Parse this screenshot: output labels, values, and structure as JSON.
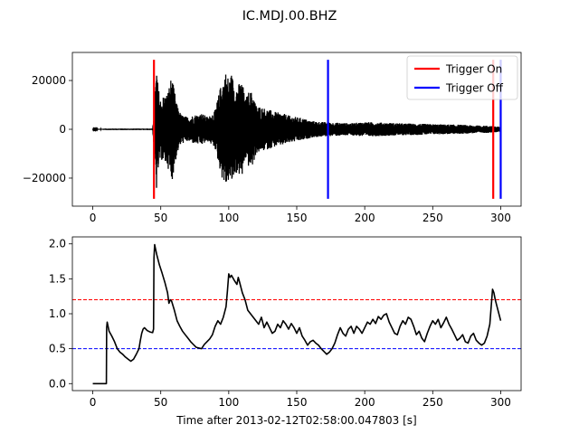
{
  "figure": {
    "title": "IC.MDJ.00.BHZ"
  },
  "chart_data": [
    {
      "type": "line",
      "title": "",
      "xlabel": "",
      "ylabel": "",
      "xlim": [
        -15,
        315
      ],
      "ylim": [
        -31500,
        31500
      ],
      "xticks": [
        0,
        50,
        100,
        150,
        200,
        250,
        300
      ],
      "yticks": [
        -20000,
        0,
        20000
      ],
      "legend": {
        "position": "top-right",
        "entries": [
          "Trigger On",
          "Trigger Off"
        ]
      },
      "series": [
        {
          "name": "",
          "color": "#000000",
          "kind": "waveform",
          "envelope": [
            [
              0,
              100
            ],
            [
              10,
              300
            ],
            [
              20,
              300
            ],
            [
              30,
              300
            ],
            [
              40,
              300
            ],
            [
              44,
              300
            ],
            [
              45,
              8000
            ],
            [
              46,
              18000
            ],
            [
              47,
              26000
            ],
            [
              48,
              18000
            ],
            [
              50,
              12000
            ],
            [
              52,
              14000
            ],
            [
              55,
              15000
            ],
            [
              57,
              20000
            ],
            [
              58,
              22000
            ],
            [
              60,
              16000
            ],
            [
              62,
              10000
            ],
            [
              65,
              6000
            ],
            [
              70,
              5000
            ],
            [
              75,
              6000
            ],
            [
              80,
              6500
            ],
            [
              85,
              5000
            ],
            [
              90,
              8000
            ],
            [
              95,
              20000
            ],
            [
              98,
              24000
            ],
            [
              100,
              21000
            ],
            [
              102,
              23000
            ],
            [
              105,
              18000
            ],
            [
              108,
              19000
            ],
            [
              110,
              20000
            ],
            [
              112,
              12000
            ],
            [
              115,
              16000
            ],
            [
              118,
              15000
            ],
            [
              120,
              10000
            ],
            [
              125,
              9000
            ],
            [
              130,
              8000
            ],
            [
              135,
              7000
            ],
            [
              140,
              6500
            ],
            [
              145,
              5500
            ],
            [
              150,
              5000
            ],
            [
              155,
              4500
            ],
            [
              160,
              3500
            ],
            [
              165,
              3200
            ],
            [
              170,
              3000
            ],
            [
              175,
              2800
            ],
            [
              180,
              2700
            ],
            [
              190,
              2500
            ],
            [
              200,
              3000
            ],
            [
              210,
              2800
            ],
            [
              220,
              2600
            ],
            [
              230,
              2400
            ],
            [
              240,
              2300
            ],
            [
              250,
              2100
            ],
            [
              260,
              2000
            ],
            [
              270,
              1900
            ],
            [
              280,
              1600
            ],
            [
              290,
              1500
            ],
            [
              295,
              1400
            ],
            [
              300,
              900
            ]
          ]
        }
      ],
      "triggers": [
        {
          "label": "Trigger On",
          "color": "#ff0000",
          "times": [
            45,
            294.5
          ]
        },
        {
          "label": "Trigger Off",
          "color": "#0000ff",
          "times": [
            173,
            300
          ]
        }
      ],
      "trigger_extent": [
        -28500,
        28500
      ]
    },
    {
      "type": "line",
      "title": "",
      "xlabel": "Time after 2013-02-12T02:58:00.047803 [s]",
      "ylabel": "",
      "xlim": [
        -15,
        315
      ],
      "ylim": [
        -0.1,
        2.1
      ],
      "xticks": [
        0,
        50,
        100,
        150,
        200,
        250,
        300
      ],
      "yticks": [
        0.0,
        0.5,
        1.0,
        1.5,
        2.0
      ],
      "ytick_labels": [
        "0.0",
        "0.5",
        "1.0",
        "1.5",
        "2.0"
      ],
      "series": [
        {
          "name": "",
          "color": "#000000",
          "points": [
            [
              0,
              0
            ],
            [
              10,
              0
            ],
            [
              10.2,
              0.8
            ],
            [
              10.6,
              0.88
            ],
            [
              12,
              0.75
            ],
            [
              14,
              0.68
            ],
            [
              16,
              0.6
            ],
            [
              18,
              0.5
            ],
            [
              20,
              0.45
            ],
            [
              22,
              0.42
            ],
            [
              24,
              0.38
            ],
            [
              26,
              0.35
            ],
            [
              28,
              0.32
            ],
            [
              30,
              0.35
            ],
            [
              32,
              0.42
            ],
            [
              34,
              0.5
            ],
            [
              35,
              0.62
            ],
            [
              36,
              0.72
            ],
            [
              37,
              0.78
            ],
            [
              38,
              0.8
            ],
            [
              40,
              0.76
            ],
            [
              42,
              0.74
            ],
            [
              44,
              0.73
            ],
            [
              44.7,
              0.78
            ],
            [
              45,
              1.8
            ],
            [
              45.5,
              1.99
            ],
            [
              47,
              1.85
            ],
            [
              49,
              1.7
            ],
            [
              51,
              1.58
            ],
            [
              53,
              1.45
            ],
            [
              55,
              1.3
            ],
            [
              56,
              1.15
            ],
            [
              57,
              1.2
            ],
            [
              58,
              1.18
            ],
            [
              60,
              1.05
            ],
            [
              62,
              0.9
            ],
            [
              64,
              0.82
            ],
            [
              66,
              0.75
            ],
            [
              68,
              0.7
            ],
            [
              70,
              0.65
            ],
            [
              72,
              0.6
            ],
            [
              74,
              0.56
            ],
            [
              76,
              0.52
            ],
            [
              78,
              0.51
            ],
            [
              80,
              0.5
            ],
            [
              82,
              0.56
            ],
            [
              84,
              0.6
            ],
            [
              86,
              0.64
            ],
            [
              88,
              0.7
            ],
            [
              90,
              0.82
            ],
            [
              92,
              0.9
            ],
            [
              94,
              0.85
            ],
            [
              96,
              0.95
            ],
            [
              98,
              1.1
            ],
            [
              99,
              1.32
            ],
            [
              100,
              1.57
            ],
            [
              101,
              1.52
            ],
            [
              102,
              1.55
            ],
            [
              104,
              1.48
            ],
            [
              106,
              1.42
            ],
            [
              107,
              1.52
            ],
            [
              108,
              1.45
            ],
            [
              110,
              1.3
            ],
            [
              112,
              1.2
            ],
            [
              114,
              1.05
            ],
            [
              116,
              1.0
            ],
            [
              118,
              0.95
            ],
            [
              120,
              0.9
            ],
            [
              122,
              0.85
            ],
            [
              124,
              0.95
            ],
            [
              126,
              0.8
            ],
            [
              128,
              0.88
            ],
            [
              130,
              0.8
            ],
            [
              132,
              0.72
            ],
            [
              134,
              0.75
            ],
            [
              136,
              0.85
            ],
            [
              138,
              0.8
            ],
            [
              140,
              0.9
            ],
            [
              142,
              0.85
            ],
            [
              144,
              0.78
            ],
            [
              146,
              0.86
            ],
            [
              148,
              0.8
            ],
            [
              150,
              0.72
            ],
            [
              152,
              0.8
            ],
            [
              154,
              0.68
            ],
            [
              156,
              0.62
            ],
            [
              158,
              0.55
            ],
            [
              160,
              0.6
            ],
            [
              162,
              0.62
            ],
            [
              164,
              0.58
            ],
            [
              166,
              0.55
            ],
            [
              168,
              0.5
            ],
            [
              170,
              0.46
            ],
            [
              172,
              0.42
            ],
            [
              174,
              0.45
            ],
            [
              176,
              0.5
            ],
            [
              178,
              0.58
            ],
            [
              180,
              0.7
            ],
            [
              182,
              0.8
            ],
            [
              184,
              0.72
            ],
            [
              186,
              0.68
            ],
            [
              188,
              0.78
            ],
            [
              190,
              0.82
            ],
            [
              192,
              0.72
            ],
            [
              194,
              0.82
            ],
            [
              196,
              0.78
            ],
            [
              198,
              0.72
            ],
            [
              200,
              0.8
            ],
            [
              202,
              0.88
            ],
            [
              204,
              0.85
            ],
            [
              206,
              0.92
            ],
            [
              208,
              0.86
            ],
            [
              210,
              0.96
            ],
            [
              212,
              0.92
            ],
            [
              214,
              0.98
            ],
            [
              216,
              1.0
            ],
            [
              218,
              0.88
            ],
            [
              220,
              0.8
            ],
            [
              222,
              0.72
            ],
            [
              224,
              0.7
            ],
            [
              226,
              0.82
            ],
            [
              228,
              0.9
            ],
            [
              230,
              0.85
            ],
            [
              232,
              0.95
            ],
            [
              234,
              0.92
            ],
            [
              236,
              0.82
            ],
            [
              238,
              0.7
            ],
            [
              240,
              0.75
            ],
            [
              242,
              0.65
            ],
            [
              244,
              0.6
            ],
            [
              246,
              0.72
            ],
            [
              248,
              0.82
            ],
            [
              250,
              0.9
            ],
            [
              252,
              0.85
            ],
            [
              254,
              0.92
            ],
            [
              256,
              0.8
            ],
            [
              258,
              0.87
            ],
            [
              260,
              0.95
            ],
            [
              262,
              0.85
            ],
            [
              264,
              0.78
            ],
            [
              266,
              0.7
            ],
            [
              268,
              0.62
            ],
            [
              270,
              0.65
            ],
            [
              272,
              0.7
            ],
            [
              274,
              0.6
            ],
            [
              276,
              0.58
            ],
            [
              278,
              0.68
            ],
            [
              280,
              0.72
            ],
            [
              282,
              0.62
            ],
            [
              284,
              0.58
            ],
            [
              286,
              0.55
            ],
            [
              288,
              0.58
            ],
            [
              290,
              0.68
            ],
            [
              292,
              0.85
            ],
            [
              294,
              1.35
            ],
            [
              295,
              1.3
            ],
            [
              296,
              1.2
            ],
            [
              298,
              1.05
            ],
            [
              300,
              0.9
            ]
          ]
        }
      ],
      "thresholds": [
        {
          "value": 1.2,
          "color": "#ff0000",
          "style": "dashed"
        },
        {
          "value": 0.5,
          "color": "#0000ff",
          "style": "dashed"
        }
      ]
    }
  ]
}
